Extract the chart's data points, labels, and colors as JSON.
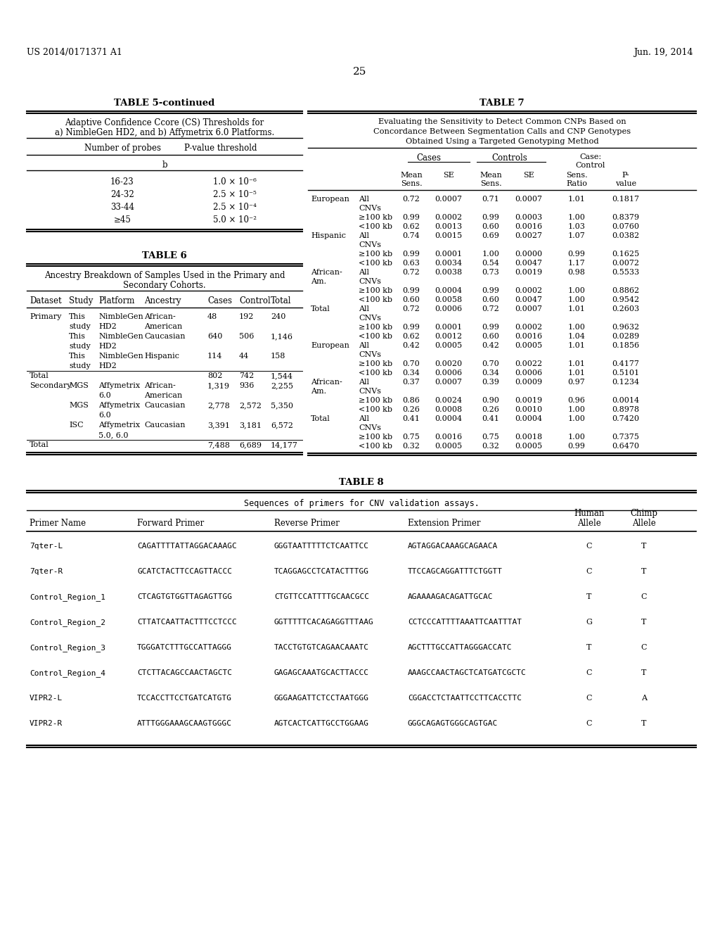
{
  "page_header_left": "US 2014/0171371 A1",
  "page_header_right": "Jun. 19, 2014",
  "page_number": "25",
  "bg_color": "#ffffff",
  "table5_title": "TABLE 5-continued",
  "table5_subtitle1": "Adaptive Confidence Ccore (CS) Thresholds for",
  "table5_subtitle2": "a) NimbleGen HD2, and b) Affymetrix 6.0 Platforms.",
  "table5_col1": "Number of probes",
  "table5_col2": "P-value threshold",
  "table5_sub": "b",
  "table5_rows": [
    [
      "16-23",
      "1.0 × 10⁻⁶"
    ],
    [
      "24-32",
      "2.5 × 10⁻⁵"
    ],
    [
      "33-44",
      "2.5 × 10⁻⁴"
    ],
    [
      "≥45",
      "5.0 × 10⁻²"
    ]
  ],
  "table6_title": "TABLE 6",
  "table6_subtitle1": "Ancestry Breakdown of Samples Used in the Primary and",
  "table6_subtitle2": "Secondary Cohorts.",
  "table6_headers": [
    "Dataset",
    "Study",
    "Platform",
    "Ancestry",
    "Cases",
    "Control",
    "Total"
  ],
  "table6_rows": [
    [
      "Primary",
      "This",
      "NimbleGen",
      "African-",
      "48",
      "192",
      "240"
    ],
    [
      "",
      "study",
      "HD2",
      "American",
      "",
      "",
      ""
    ],
    [
      "",
      "This",
      "NimbleGen",
      "Caucasian",
      "640",
      "506",
      "1,146"
    ],
    [
      "",
      "study",
      "HD2",
      "",
      "",
      "",
      ""
    ],
    [
      "",
      "This",
      "NimbleGen",
      "Hispanic",
      "114",
      "44",
      "158"
    ],
    [
      "",
      "study",
      "HD2",
      "",
      "",
      "",
      ""
    ],
    [
      "Total",
      "",
      "",
      "",
      "802",
      "742",
      "1,544"
    ],
    [
      "Secondary",
      "MGS",
      "Affymetrix",
      "African-",
      "1,319",
      "936",
      "2,255"
    ],
    [
      "",
      "",
      "6.0",
      "American",
      "",
      "",
      ""
    ],
    [
      "",
      "MGS",
      "Affymetrix",
      "Caucasian",
      "2,778",
      "2,572",
      "5,350"
    ],
    [
      "",
      "",
      "6.0",
      "",
      "",
      "",
      ""
    ],
    [
      "",
      "ISC",
      "Affymetrix",
      "Caucasian",
      "3,391",
      "3,181",
      "6,572"
    ],
    [
      "",
      "",
      "5.0, 6.0",
      "",
      "",
      "",
      ""
    ],
    [
      "Total",
      "",
      "",
      "",
      "7,488",
      "6,689",
      "14,177"
    ]
  ],
  "table7_title": "TABLE 7",
  "table7_sub1": "Evaluating the Sensitivity to Detect Common CNPs Based on",
  "table7_sub2": "Concordance Between Segmentation Calls and CNP Genotypes",
  "table7_sub3": "Obtained Using a Targeted Genotyping Method",
  "table7_rows": [
    [
      "European",
      "All",
      "0.72",
      "0.0007",
      "0.71",
      "0.0007",
      "1.01",
      "0.1817"
    ],
    [
      "",
      "CNVs",
      "",
      "",
      "",
      "",
      "",
      ""
    ],
    [
      "",
      "≥100 kb",
      "0.99",
      "0.0002",
      "0.99",
      "0.0003",
      "1.00",
      "0.8379"
    ],
    [
      "",
      "<100 kb",
      "0.62",
      "0.0013",
      "0.60",
      "0.0016",
      "1.03",
      "0.0760"
    ],
    [
      "Hispanic",
      "All",
      "0.74",
      "0.0015",
      "0.69",
      "0.0027",
      "1.07",
      "0.0382"
    ],
    [
      "",
      "CNVs",
      "",
      "",
      "",
      "",
      "",
      ""
    ],
    [
      "",
      "≥100 kb",
      "0.99",
      "0.0001",
      "1.00",
      "0.0000",
      "0.99",
      "0.1625"
    ],
    [
      "",
      "<100 kb",
      "0.63",
      "0.0034",
      "0.54",
      "0.0047",
      "1.17",
      "0.0072"
    ],
    [
      "African-",
      "All",
      "0.72",
      "0.0038",
      "0.73",
      "0.0019",
      "0.98",
      "0.5533"
    ],
    [
      "Am.",
      "CNVs",
      "",
      "",
      "",
      "",
      "",
      ""
    ],
    [
      "",
      "≥100 kb",
      "0.99",
      "0.0004",
      "0.99",
      "0.0002",
      "1.00",
      "0.8862"
    ],
    [
      "",
      "<100 kb",
      "0.60",
      "0.0058",
      "0.60",
      "0.0047",
      "1.00",
      "0.9542"
    ],
    [
      "Total",
      "All",
      "0.72",
      "0.0006",
      "0.72",
      "0.0007",
      "1.01",
      "0.2603"
    ],
    [
      "",
      "CNVs",
      "",
      "",
      "",
      "",
      "",
      ""
    ],
    [
      "",
      "≥100 kb",
      "0.99",
      "0.0001",
      "0.99",
      "0.0002",
      "1.00",
      "0.9632"
    ],
    [
      "",
      "<100 kb",
      "0.62",
      "0.0012",
      "0.60",
      "0.0016",
      "1.04",
      "0.0289"
    ],
    [
      "European",
      "All",
      "0.42",
      "0.0005",
      "0.42",
      "0.0005",
      "1.01",
      "0.1856"
    ],
    [
      "",
      "CNVs",
      "",
      "",
      "",
      "",
      "",
      ""
    ],
    [
      "",
      "≥100 kb",
      "0.70",
      "0.0020",
      "0.70",
      "0.0022",
      "1.01",
      "0.4177"
    ],
    [
      "",
      "<100 kb",
      "0.34",
      "0.0006",
      "0.34",
      "0.0006",
      "1.01",
      "0.5101"
    ],
    [
      "African-",
      "All",
      "0.37",
      "0.0007",
      "0.39",
      "0.0009",
      "0.97",
      "0.1234"
    ],
    [
      "Am.",
      "CNVs",
      "",
      "",
      "",
      "",
      "",
      ""
    ],
    [
      "",
      "≥100 kb",
      "0.86",
      "0.0024",
      "0.90",
      "0.0019",
      "0.96",
      "0.0014"
    ],
    [
      "",
      "<100 kb",
      "0.26",
      "0.0008",
      "0.26",
      "0.0010",
      "1.00",
      "0.8978"
    ],
    [
      "Total",
      "All",
      "0.41",
      "0.0004",
      "0.41",
      "0.0004",
      "1.00",
      "0.7420"
    ],
    [
      "",
      "CNVs",
      "",
      "",
      "",
      "",
      "",
      ""
    ],
    [
      "",
      "≥100 kb",
      "0.75",
      "0.0016",
      "0.75",
      "0.0018",
      "1.00",
      "0.7375"
    ],
    [
      "",
      "<100 kb",
      "0.32",
      "0.0005",
      "0.32",
      "0.0005",
      "0.99",
      "0.6470"
    ]
  ],
  "table8_title": "TABLE 8",
  "table8_subtitle": "Sequences of primers for CNV validation assays.",
  "table8_rows": [
    [
      "7qter-L",
      "CAGATTTTATTAGGACAAAGC",
      "GGGTAATTTTTCTCAATTCC",
      "AGTAGGACAAAGCAGAACA",
      "C",
      "T"
    ],
    [
      "7qter-R",
      "GCATCTACTTCCAGTTACCC",
      "TCAGGAGCCTCATACTTTGG",
      "TTCCAGCAGGATTTCTGGTT",
      "C",
      "T"
    ],
    [
      "Control_Region_1",
      "CTCAGTGTGGTTAGAGTTGG",
      "CTGTTCCATTTTGCAACGCC",
      "AGAAAAGACAGATTGCAC",
      "T",
      "C"
    ],
    [
      "Control_Region_2",
      "CTTATCAATTACTTTCCTCCC",
      "GGTTTTTCACAGAGGTTTAAG",
      "CCTCCCATTTTAAATTCAATTTAT",
      "G",
      "T"
    ],
    [
      "Control_Region_3",
      "TGGGATCTTTGCCATTAGGG",
      "TACCTGTGTCAGAACAAATC",
      "AGCTTTGCCATTAGGGACCATC",
      "T",
      "C"
    ],
    [
      "Control_Region_4",
      "CTCTTACAGCCAACTAGCTC",
      "GAGAGCAAATGCACTTACCC",
      "AAAGCCAACTAGCTCATGATCGCTC",
      "C",
      "T"
    ],
    [
      "VIPR2-L",
      "TCCACCTTCCTGATCATGTG",
      "GGGAAGATTCTCCTAATGGG",
      "CGGACCTCTAATTCCTTCACCTTC",
      "C",
      "A"
    ],
    [
      "VIPR2-R",
      "ATTTGGGAAAGCAAGTGGGC",
      "AGTCACTCATTGCCTGGAAG",
      "GGGCAGAGTGGGCAGTGAC",
      "C",
      "T"
    ]
  ]
}
